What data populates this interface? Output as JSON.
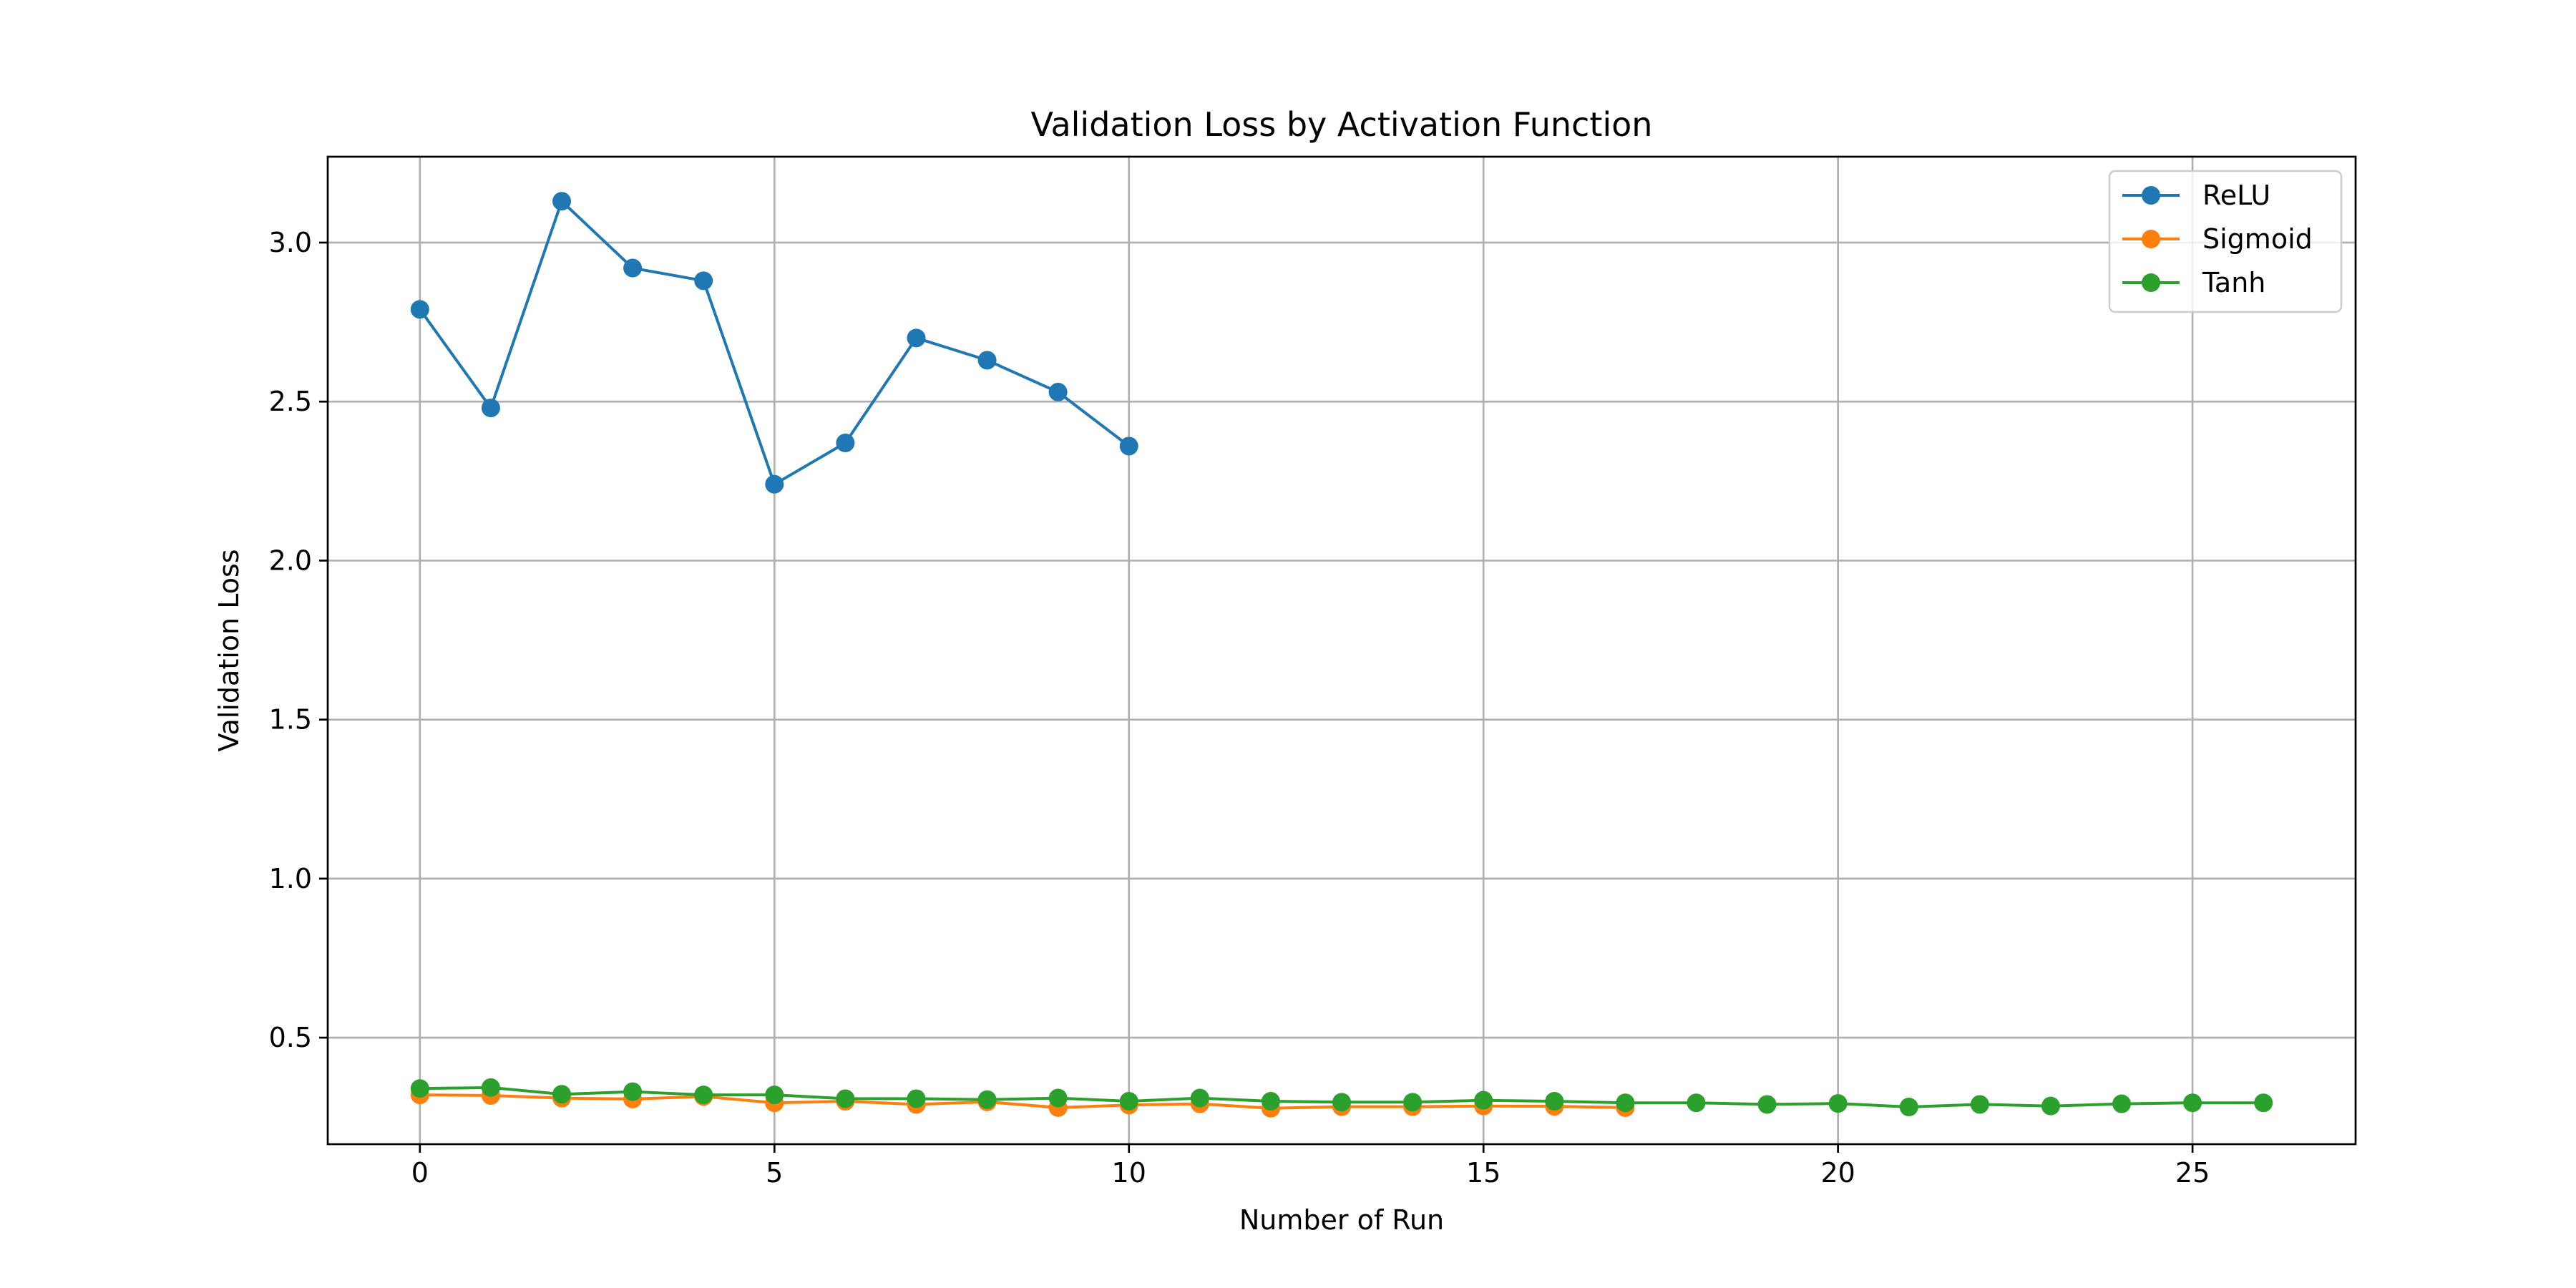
{
  "chart_data": {
    "type": "line",
    "title": "Validation Loss by Activation Function",
    "xlabel": "Number of Run",
    "ylabel": "Validation Loss",
    "xlim": [
      -1.3,
      27.3
    ],
    "ylim": [
      0.165,
      3.27
    ],
    "xticks": [
      0,
      5,
      10,
      15,
      20,
      25
    ],
    "yticks": [
      0.5,
      1.0,
      1.5,
      2.0,
      2.5,
      3.0
    ],
    "xtick_labels": [
      "0",
      "5",
      "10",
      "15",
      "20",
      "25"
    ],
    "ytick_labels": [
      "0.5",
      "1.0",
      "1.5",
      "2.0",
      "2.5",
      "3.0"
    ],
    "grid": true,
    "legend": {
      "position": "top-right"
    },
    "series": [
      {
        "name": "ReLU",
        "color": "#1f77b4",
        "marker": "circle",
        "x": [
          0,
          1,
          2,
          3,
          4,
          5,
          6,
          7,
          8,
          9,
          10
        ],
        "y": [
          2.79,
          2.48,
          3.13,
          2.92,
          2.88,
          2.24,
          2.37,
          2.7,
          2.63,
          2.53,
          2.36
        ]
      },
      {
        "name": "Sigmoid",
        "color": "#ff7f0e",
        "marker": "circle",
        "x": [
          0,
          1,
          2,
          3,
          4,
          5,
          6,
          7,
          8,
          9,
          10,
          11,
          12,
          13,
          14,
          15,
          16,
          17
        ],
        "y": [
          0.32,
          0.318,
          0.31,
          0.307,
          0.315,
          0.295,
          0.3,
          0.29,
          0.298,
          0.28,
          0.288,
          0.292,
          0.278,
          0.283,
          0.283,
          0.285,
          0.284,
          0.28
        ]
      },
      {
        "name": "Tanh",
        "color": "#2ca02c",
        "marker": "circle",
        "x": [
          0,
          1,
          2,
          3,
          4,
          5,
          6,
          7,
          8,
          9,
          10,
          11,
          12,
          13,
          14,
          15,
          16,
          17,
          18,
          19,
          20,
          21,
          22,
          23,
          24,
          25,
          26
        ],
        "y": [
          0.34,
          0.343,
          0.322,
          0.33,
          0.32,
          0.32,
          0.308,
          0.308,
          0.305,
          0.31,
          0.3,
          0.31,
          0.3,
          0.297,
          0.297,
          0.303,
          0.3,
          0.295,
          0.295,
          0.29,
          0.293,
          0.282,
          0.29,
          0.285,
          0.292,
          0.295,
          0.295
        ]
      }
    ]
  }
}
